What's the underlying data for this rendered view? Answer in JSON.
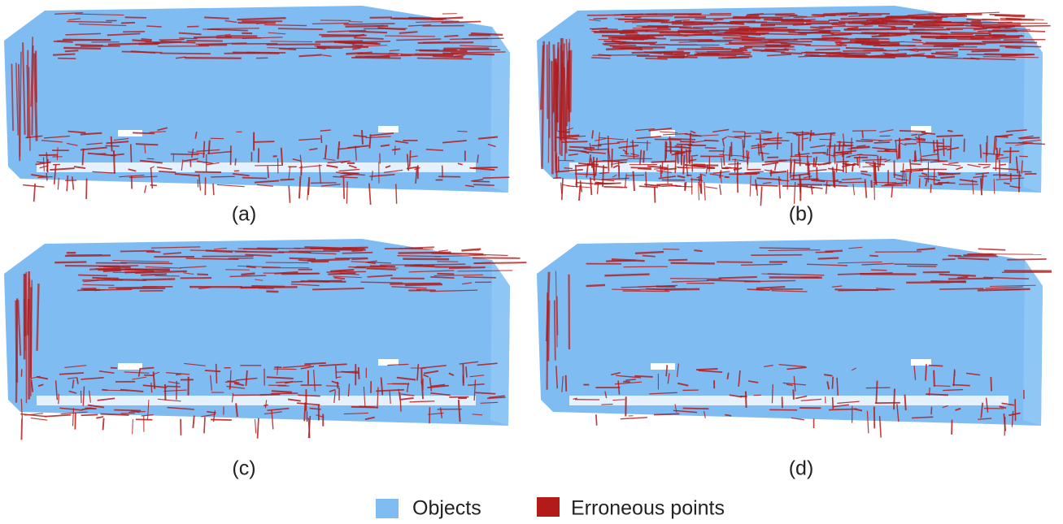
{
  "panels": [
    {
      "label": "(a)"
    },
    {
      "label": "(b)"
    },
    {
      "label": "(c)"
    },
    {
      "label": "(d)"
    }
  ],
  "legend": [
    {
      "label": "Objects"
    },
    {
      "label": "Erroneous points"
    }
  ]
}
